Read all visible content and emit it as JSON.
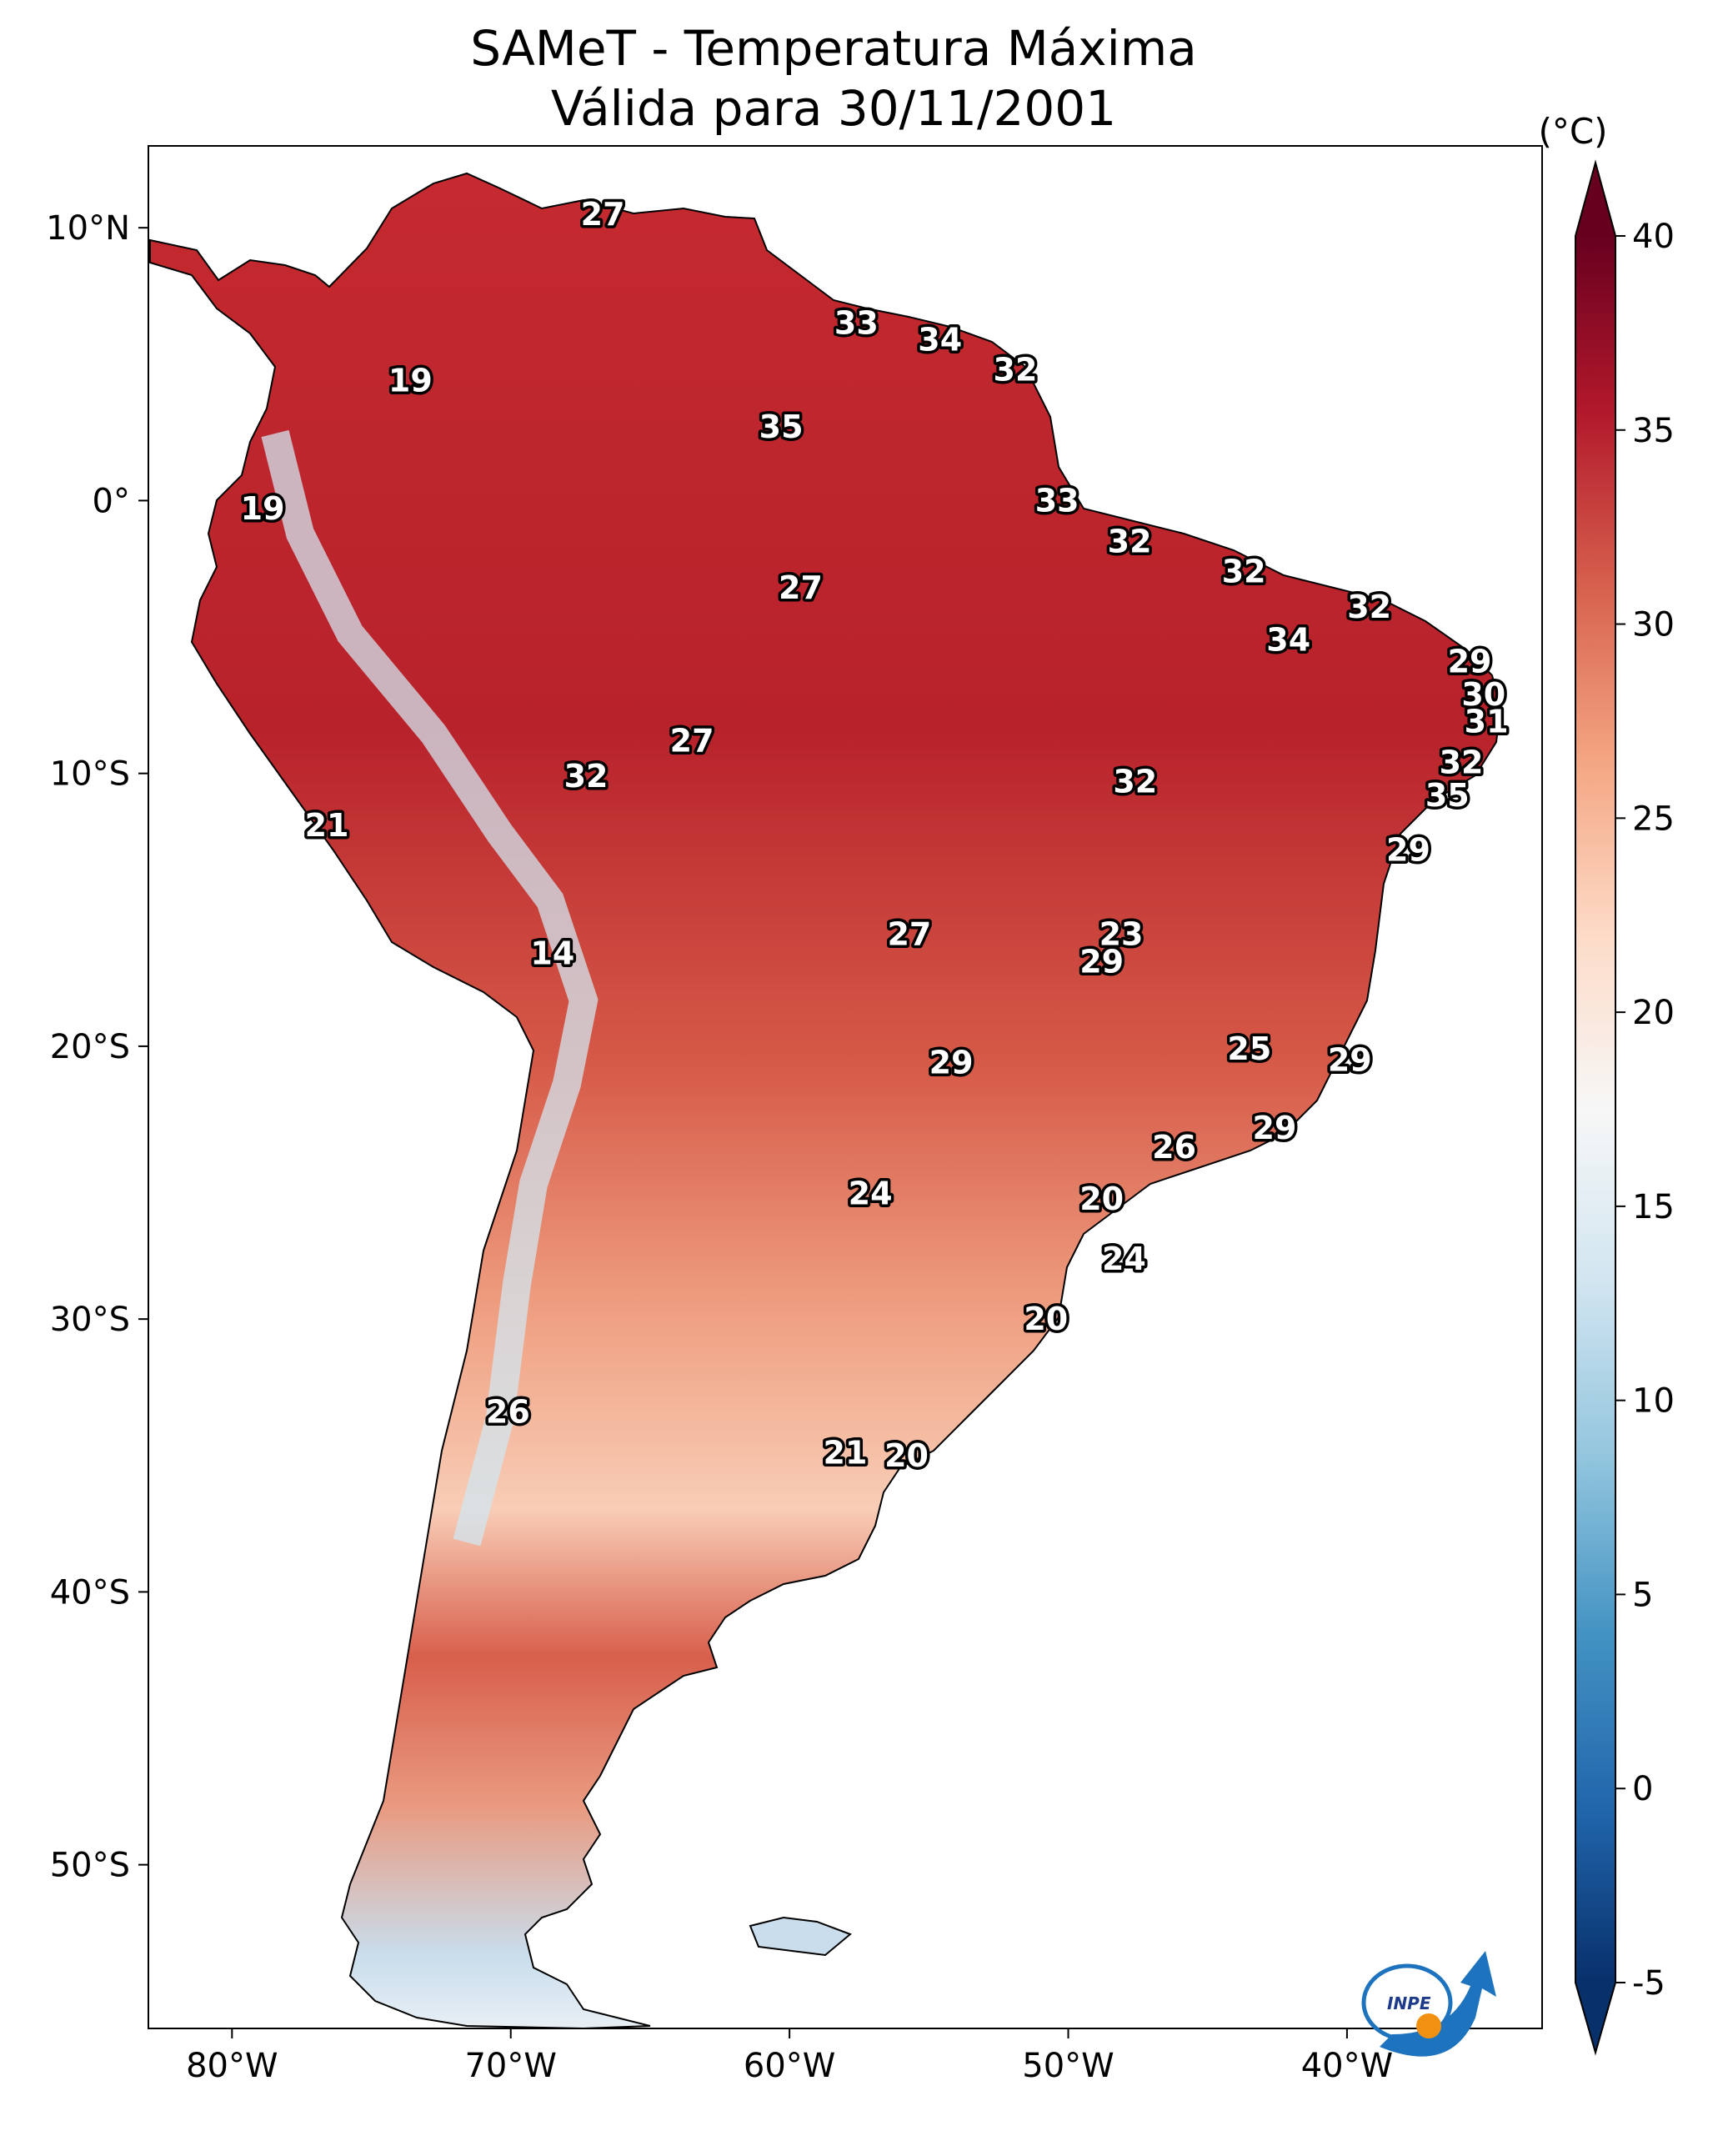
{
  "title": {
    "line1": "SAMeT - Temperatura Máxima",
    "line2": "Válida para 30/11/2001"
  },
  "axes": {
    "lat_ticks": [
      "10°N",
      "0°",
      "10°S",
      "20°S",
      "30°S",
      "40°S",
      "50°S"
    ],
    "lon_ticks": [
      "80°W",
      "70°W",
      "60°W",
      "50°W",
      "40°W"
    ],
    "lat_range": [
      -56,
      13
    ],
    "lon_range": [
      -83,
      -33
    ]
  },
  "colorbar": {
    "unit": "(°C)",
    "ticks": [
      "40",
      "35",
      "30",
      "25",
      "20",
      "15",
      "10",
      "5",
      "0",
      "-5"
    ],
    "range": [
      -5,
      40
    ],
    "colors": [
      "#08306b",
      "#2166ac",
      "#4393c3",
      "#92c5de",
      "#d1e5f0",
      "#f7f7f7",
      "#fddbc7",
      "#f4a582",
      "#d6604d",
      "#b2182b",
      "#67001f"
    ]
  },
  "contour_labels": [
    {
      "text": "27",
      "lon": -66.7,
      "lat": 10.5
    },
    {
      "text": "19",
      "lon": -73.6,
      "lat": 4.4
    },
    {
      "text": "33",
      "lon": -57.6,
      "lat": 6.5
    },
    {
      "text": "34",
      "lon": -54.6,
      "lat": 5.9
    },
    {
      "text": "32",
      "lon": -51.9,
      "lat": 4.8
    },
    {
      "text": "35",
      "lon": -60.3,
      "lat": 2.7
    },
    {
      "text": "19",
      "lon": -78.9,
      "lat": -0.3
    },
    {
      "text": "33",
      "lon": -50.4,
      "lat": 0.0
    },
    {
      "text": "32",
      "lon": -47.8,
      "lat": -1.5
    },
    {
      "text": "27",
      "lon": -59.6,
      "lat": -3.2
    },
    {
      "text": "32",
      "lon": -43.7,
      "lat": -2.6
    },
    {
      "text": "32",
      "lon": -39.2,
      "lat": -3.9
    },
    {
      "text": "34",
      "lon": -42.1,
      "lat": -5.1
    },
    {
      "text": "29",
      "lon": -35.6,
      "lat": -5.9
    },
    {
      "text": "30",
      "lon": -35.1,
      "lat": -7.1
    },
    {
      "text": "31",
      "lon": -35.0,
      "lat": -8.1
    },
    {
      "text": "32",
      "lon": -35.9,
      "lat": -9.6
    },
    {
      "text": "27",
      "lon": -63.5,
      "lat": -8.8
    },
    {
      "text": "32",
      "lon": -67.3,
      "lat": -10.1
    },
    {
      "text": "32",
      "lon": -47.6,
      "lat": -10.3
    },
    {
      "text": "35",
      "lon": -36.4,
      "lat": -10.8
    },
    {
      "text": "21",
      "lon": -76.6,
      "lat": -11.9
    },
    {
      "text": "29",
      "lon": -37.8,
      "lat": -12.8
    },
    {
      "text": "27",
      "lon": -55.7,
      "lat": -15.9
    },
    {
      "text": "23",
      "lon": -48.1,
      "lat": -15.9
    },
    {
      "text": "29",
      "lon": -48.8,
      "lat": -16.9
    },
    {
      "text": "14",
      "lon": -68.5,
      "lat": -16.6
    },
    {
      "text": "25",
      "lon": -43.5,
      "lat": -20.1
    },
    {
      "text": "29",
      "lon": -39.9,
      "lat": -20.5
    },
    {
      "text": "29",
      "lon": -54.2,
      "lat": -20.6
    },
    {
      "text": "29",
      "lon": -42.6,
      "lat": -23.0
    },
    {
      "text": "26",
      "lon": -46.2,
      "lat": -23.7
    },
    {
      "text": "24",
      "lon": -57.1,
      "lat": -25.4
    },
    {
      "text": "20",
      "lon": -48.8,
      "lat": -25.6
    },
    {
      "text": "24",
      "lon": -48.0,
      "lat": -27.8
    },
    {
      "text": "20",
      "lon": -50.8,
      "lat": -30.0
    },
    {
      "text": "26",
      "lon": -70.1,
      "lat": -33.4
    },
    {
      "text": "21",
      "lon": -58.0,
      "lat": -34.9
    },
    {
      "text": "20",
      "lon": -55.8,
      "lat": -35.0
    }
  ],
  "logo": {
    "text": "INPE"
  }
}
